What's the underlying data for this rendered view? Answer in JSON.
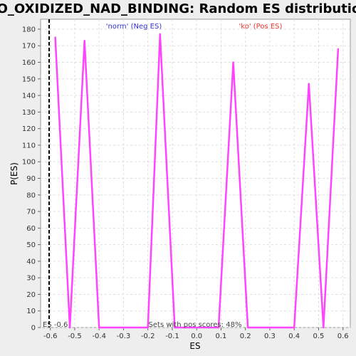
{
  "chart_data": {
    "type": "line",
    "title": "GO_OXIDIZED_NAD_BINDING: Random ES distribution",
    "xlabel": "ES",
    "ylabel": "P(ES)",
    "xlim": [
      -0.64,
      0.63
    ],
    "ylim": [
      0,
      186
    ],
    "x_ticks": [
      -0.6,
      -0.5,
      -0.4,
      -0.3,
      -0.2,
      -0.1,
      0.0,
      0.1,
      0.2,
      0.3,
      0.4,
      0.5,
      0.6
    ],
    "x_tick_labels": [
      "-0.6",
      "-0.5",
      "-0.4",
      "-0.3",
      "-0.2",
      "-0.1",
      "0.0",
      "0.1",
      "0.2",
      "0.3",
      "0.4",
      "0.5",
      "0.6"
    ],
    "y_ticks": [
      0,
      10,
      20,
      30,
      40,
      50,
      60,
      70,
      80,
      90,
      100,
      110,
      120,
      130,
      140,
      150,
      160,
      170,
      180
    ],
    "grid": true,
    "series": [
      {
        "color": "#ff44ff",
        "x": [
          -0.58,
          -0.52,
          -0.46,
          -0.4,
          -0.2,
          -0.15,
          -0.09,
          0.09,
          0.15,
          0.21,
          0.4,
          0.46,
          0.52,
          0.58
        ],
        "y": [
          175,
          0,
          173,
          0,
          0,
          177,
          0,
          0,
          160,
          0,
          0,
          147,
          0,
          168
        ]
      }
    ],
    "annotations": {
      "neg_label": "'norm' (Neg ES)",
      "pos_label": "'ko' (Pos ES)",
      "es_marker_label": "ES -0.6",
      "es_marker_value": -0.605,
      "pos_scores_note": "Sets with pos scores: 48%"
    },
    "colors": {
      "series": "#ff44ff",
      "neg_label": "#3333cc",
      "pos_label": "#ee3333",
      "es_marker": "#000000"
    }
  }
}
